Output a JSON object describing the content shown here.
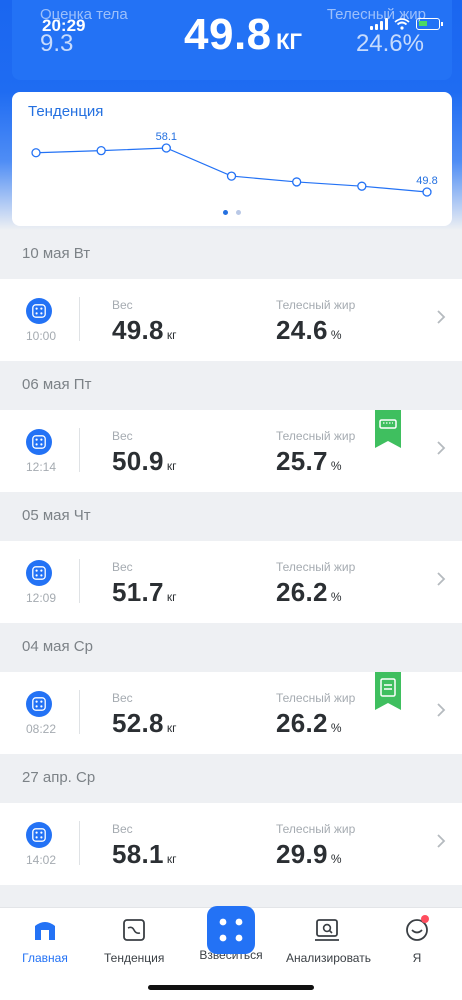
{
  "status_bar": {
    "time": "20:29"
  },
  "header": {
    "body_score_label": "Оценка тела",
    "body_score_value": "9.3",
    "weight_value": "49.8",
    "weight_unit": "КГ",
    "body_fat_label": "Телесный жир",
    "body_fat_value": "24.6%"
  },
  "trend": {
    "title": "Тенденция",
    "max_label": "58.1",
    "last_label": "49.8"
  },
  "chart_data": {
    "type": "line",
    "title": "Тенденция",
    "series": [
      {
        "values": [
          57.2,
          57.6,
          58.1,
          52.8,
          51.7,
          50.9,
          49.8
        ]
      }
    ],
    "annotations": [
      "58.1",
      "49.8"
    ],
    "grid": false
  },
  "entries": [
    {
      "date": "10 мая Вт",
      "time": "10:00",
      "weight_label": "Вес",
      "weight": "49.8",
      "weight_unit": "кг",
      "fat_label": "Телесный жир",
      "fat": "24.6",
      "fat_unit": "%",
      "badge": ""
    },
    {
      "date": "06 мая Пт",
      "time": "12:14",
      "weight_label": "Вес",
      "weight": "50.9",
      "weight_unit": "кг",
      "fat_label": "Телесный жир",
      "fat": "25.7",
      "fat_unit": "%",
      "badge": "scale-badge"
    },
    {
      "date": "05 мая Чт",
      "time": "12:09",
      "weight_label": "Вес",
      "weight": "51.7",
      "weight_unit": "кг",
      "fat_label": "Телесный жир",
      "fat": "26.2",
      "fat_unit": "%",
      "badge": ""
    },
    {
      "date": "04 мая Ср",
      "time": "08:22",
      "weight_label": "Вес",
      "weight": "52.8",
      "weight_unit": "кг",
      "fat_label": "Телесный жир",
      "fat": "26.2",
      "fat_unit": "%",
      "badge": "report-badge"
    },
    {
      "date": "27 апр. Ср",
      "time": "14:02",
      "weight_label": "Вес",
      "weight": "58.1",
      "weight_unit": "кг",
      "fat_label": "Телесный жир",
      "fat": "29.9",
      "fat_unit": "%",
      "badge": ""
    }
  ],
  "nav": {
    "home": "Главная",
    "trend": "Тенденция",
    "weigh": "Взвеситься",
    "analyze": "Анализировать",
    "me": "Я"
  },
  "colors": {
    "accent": "#2372f5",
    "badge_green": "#3fbf5f",
    "notification": "#ff4d5e"
  }
}
